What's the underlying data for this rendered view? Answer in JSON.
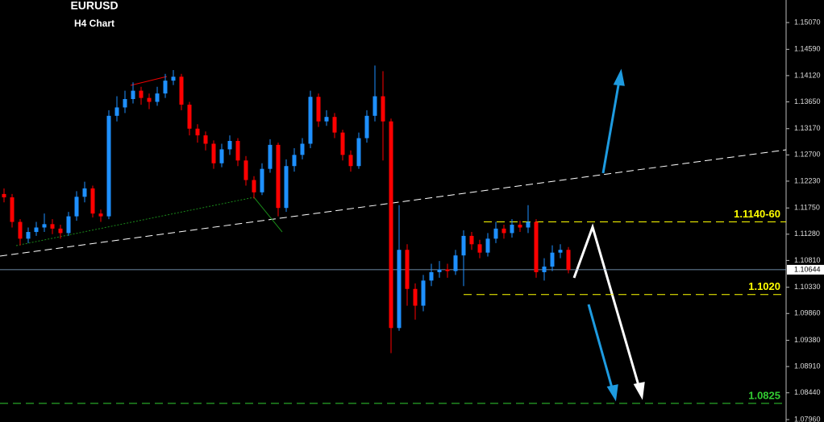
{
  "chart_data": {
    "type": "candlestick",
    "title": "EURUSD",
    "subtitle": "H4 Chart",
    "open": [
      1.12,
      1.1194,
      1.115,
      1.112,
      1.1132,
      1.114,
      1.1146,
      1.1138,
      1.113,
      1.116,
      1.1195,
      1.121,
      1.1165,
      1.116,
      1.134,
      1.1355,
      1.137,
      1.1385,
      1.1372,
      1.1365,
      1.138,
      1.1403,
      1.141,
      1.136,
      1.1317,
      1.1305,
      1.129,
      1.1255,
      1.128,
      1.1295,
      1.126,
      1.1225,
      1.1203,
      1.1245,
      1.1288,
      1.1175,
      1.125,
      1.127,
      1.129,
      1.1374,
      1.133,
      1.1338,
      1.131,
      1.127,
      1.125,
      1.13,
      1.134,
      1.1375,
      1.133,
      1.096,
      1.11,
      1.103,
      1.1,
      1.1045,
      1.106,
      1.1065,
      1.1062,
      1.109,
      1.1125,
      1.111,
      1.1095,
      1.112,
      1.1138,
      1.113,
      1.1145,
      1.114,
      1.115,
      1.106,
      1.107,
      1.1095,
      1.11
    ],
    "high": [
      1.121,
      1.12,
      1.1155,
      1.114,
      1.115,
      1.1165,
      1.1155,
      1.1145,
      1.1168,
      1.1205,
      1.1222,
      1.1215,
      1.1172,
      1.135,
      1.1375,
      1.1385,
      1.14,
      1.1392,
      1.138,
      1.1392,
      1.1415,
      1.1422,
      1.1415,
      1.1365,
      1.1325,
      1.1312,
      1.1296,
      1.129,
      1.1305,
      1.13,
      1.1268,
      1.1232,
      1.1255,
      1.1298,
      1.1292,
      1.1262,
      1.1282,
      1.13,
      1.1385,
      1.138,
      1.135,
      1.1345,
      1.1315,
      1.1278,
      1.131,
      1.135,
      1.143,
      1.142,
      1.1335,
      1.118,
      1.111,
      1.104,
      1.1055,
      1.1075,
      1.108,
      1.1075,
      1.11,
      1.1135,
      1.1132,
      1.1118,
      1.113,
      1.115,
      1.1145,
      1.1155,
      1.1152,
      1.118,
      1.1155,
      1.1085,
      1.1108,
      1.111,
      1.1105
    ],
    "low": [
      1.1185,
      1.114,
      1.1108,
      1.1112,
      1.1125,
      1.1132,
      1.1128,
      1.112,
      1.1125,
      1.1152,
      1.1185,
      1.1158,
      1.115,
      1.1155,
      1.133,
      1.1345,
      1.1362,
      1.136,
      1.1352,
      1.1358,
      1.1372,
      1.1395,
      1.135,
      1.1305,
      1.1292,
      1.1278,
      1.1245,
      1.1248,
      1.127,
      1.125,
      1.1215,
      1.1192,
      1.1198,
      1.1238,
      1.116,
      1.1168,
      1.124,
      1.1262,
      1.1282,
      1.132,
      1.1322,
      1.13,
      1.126,
      1.124,
      1.1245,
      1.1292,
      1.133,
      1.126,
      1.0915,
      1.0955,
      1.1,
      1.0975,
      1.099,
      1.1035,
      1.105,
      1.105,
      1.1055,
      1.1035,
      1.11,
      1.1085,
      1.1088,
      1.1112,
      1.112,
      1.1122,
      1.1132,
      1.113,
      1.105,
      1.1045,
      1.1062,
      1.1085,
      1.1058
    ],
    "close": [
      1.1194,
      1.115,
      1.112,
      1.1132,
      1.114,
      1.1146,
      1.1138,
      1.113,
      1.116,
      1.1195,
      1.121,
      1.1165,
      1.116,
      1.134,
      1.1355,
      1.137,
      1.1385,
      1.1372,
      1.1365,
      1.138,
      1.1403,
      1.141,
      1.136,
      1.1317,
      1.1305,
      1.129,
      1.1255,
      1.128,
      1.1295,
      1.126,
      1.1225,
      1.1203,
      1.1245,
      1.1288,
      1.1175,
      1.125,
      1.127,
      1.129,
      1.1374,
      1.133,
      1.1338,
      1.131,
      1.127,
      1.125,
      1.13,
      1.134,
      1.1375,
      1.133,
      1.096,
      1.11,
      1.103,
      1.1,
      1.1045,
      1.106,
      1.1065,
      1.1062,
      1.109,
      1.1125,
      1.111,
      1.1095,
      1.112,
      1.1138,
      1.113,
      1.1145,
      1.114,
      1.115,
      1.106,
      1.107,
      1.1095,
      1.11,
      1.1064
    ],
    "up_color": "#1e90ff",
    "down_color": "#ff0000",
    "ylim": [
      1.07917,
      1.15474
    ],
    "yticks": [
      {
        "value": 1.1507,
        "label": "1.15070"
      },
      {
        "value": 1.1459,
        "label": "1.14590"
      },
      {
        "value": 1.1412,
        "label": "1.14120"
      },
      {
        "value": 1.1365,
        "label": "1.13650"
      },
      {
        "value": 1.1317,
        "label": "1.13170"
      },
      {
        "value": 1.127,
        "label": "1.12700"
      },
      {
        "value": 1.1223,
        "label": "1.12230"
      },
      {
        "value": 1.1175,
        "label": "1.11750"
      },
      {
        "value": 1.1128,
        "label": "1.11280"
      },
      {
        "value": 1.1081,
        "label": "1.10810"
      },
      {
        "value": 1.1033,
        "label": "1.10330"
      },
      {
        "value": 1.0986,
        "label": "1.09860"
      },
      {
        "value": 1.0938,
        "label": "1.09380"
      },
      {
        "value": 1.0891,
        "label": "1.08910"
      },
      {
        "value": 1.0844,
        "label": "1.08440"
      },
      {
        "value": 1.0796,
        "label": "1.07960"
      }
    ],
    "last_price": 1.10644,
    "levels": [
      {
        "value": 1.115,
        "label": "1.1140-60",
        "color": "#ffff00"
      },
      {
        "value": 1.102,
        "label": "1.1020",
        "color": "#ffff00"
      },
      {
        "value": 1.0825,
        "label": "1.0825",
        "color": "#32cd32"
      }
    ]
  }
}
